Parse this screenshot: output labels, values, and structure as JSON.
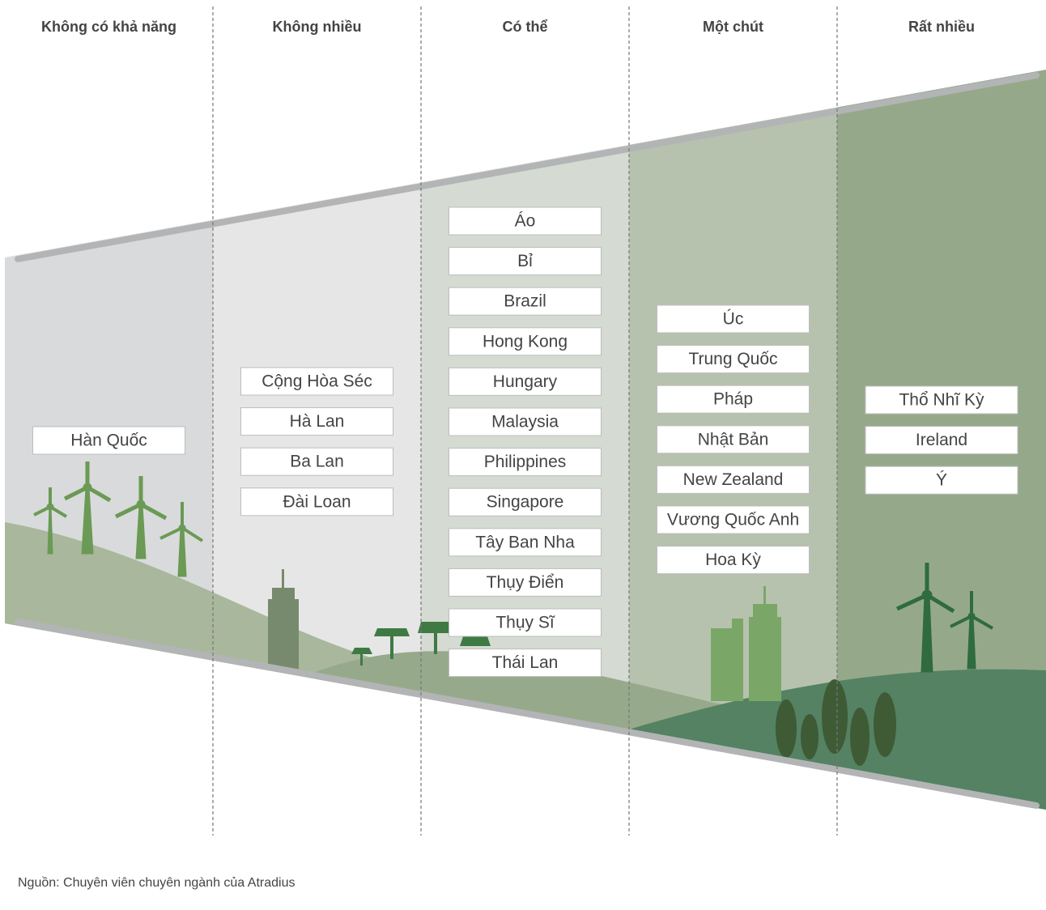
{
  "columns": [
    {
      "header": "Không có khả năng",
      "items": [
        "Hàn Quốc"
      ]
    },
    {
      "header": "Không nhiều",
      "items": [
        "Cộng Hòa Séc",
        "Hà Lan",
        "Ba Lan",
        "Đài Loan"
      ]
    },
    {
      "header": "Có thể",
      "items": [
        "Áo",
        "Bỉ",
        "Brazil",
        "Hong Kong",
        "Hungary",
        "Malaysia",
        "Philippines",
        "Singapore",
        "Tây Ban Nha",
        "Thụy Điển",
        "Thụy Sĩ",
        "Thái Lan"
      ]
    },
    {
      "header": "Một chút",
      "items": [
        "Úc",
        "Trung Quốc",
        "Pháp",
        "Nhật Bản",
        "New Zealand",
        "Vương Quốc Anh",
        "Hoa Kỳ"
      ]
    },
    {
      "header": "Rất nhiều",
      "items": [
        "Thổ Nhĩ Kỳ",
        "Ireland",
        "Ý"
      ]
    }
  ],
  "source": "Nguồn: Chuyên viên chuyên ngành của Atradius"
}
